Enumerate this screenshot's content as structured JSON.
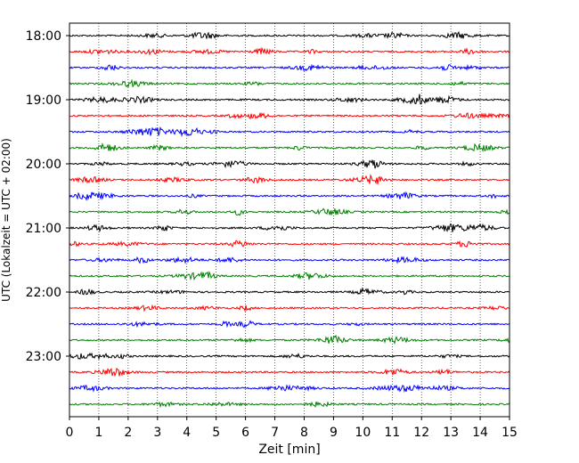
{
  "chart_data": {
    "type": "line",
    "subtype": "helicorder",
    "title": "",
    "xlabel": "Zeit  [min]",
    "ylabel": "UTC (Lokalzeit = UTC + 02:00)",
    "xlim": [
      0,
      15
    ],
    "x_ticks": [
      "0",
      "1",
      "2",
      "3",
      "4",
      "5",
      "6",
      "7",
      "8",
      "9",
      "10",
      "11",
      "12",
      "13",
      "14",
      "15"
    ],
    "y_ticks": [
      "18:00",
      "19:00",
      "20:00",
      "21:00",
      "22:00",
      "23:00"
    ],
    "trace_interval_min": 15,
    "start_time": "18:00",
    "trace_count": 24,
    "colors": [
      "#000000",
      "#ff0000",
      "#0000ff",
      "#008000"
    ],
    "grid": "vertical dotted lines at each minute"
  }
}
